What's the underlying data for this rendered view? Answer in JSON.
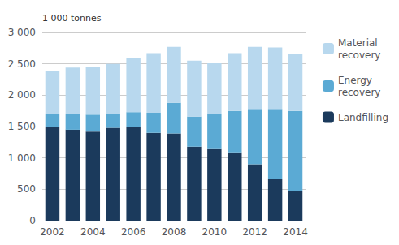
{
  "chart_data": {
    "type": "bar",
    "stacked": true,
    "grid": true,
    "legend": "right",
    "ylabel": "1 000 tonnes",
    "categories": [
      "2002",
      null,
      "2004",
      null,
      "2006",
      null,
      "2008",
      null,
      "2010",
      null,
      "2012",
      null,
      "2014"
    ],
    "series": [
      {
        "name": "Landfilling",
        "color": "#1b3a5c",
        "values": [
          1490,
          1450,
          1420,
          1480,
          1490,
          1400,
          1390,
          1180,
          1140,
          1090,
          900,
          660,
          470
        ]
      },
      {
        "name": "Energy\nrecovery",
        "color": "#5baad4",
        "values": [
          210,
          250,
          270,
          220,
          240,
          320,
          490,
          480,
          560,
          660,
          880,
          1120,
          1280
        ]
      },
      {
        "name": "Material\nrecovery",
        "color": "#b8d8ee",
        "values": [
          690,
          740,
          760,
          800,
          870,
          950,
          890,
          890,
          810,
          920,
          990,
          980,
          910
        ]
      }
    ],
    "ylim": [
      0,
      3000
    ],
    "yticks": [
      0,
      500,
      {
        "value": 1000,
        "label": "1 000"
      },
      {
        "value": 1500,
        "label": "1 500"
      },
      {
        "value": 2000,
        "label": "2 000"
      },
      {
        "value": 2500,
        "label": "2 500"
      },
      {
        "value": 3000,
        "label": "3 000"
      }
    ]
  }
}
